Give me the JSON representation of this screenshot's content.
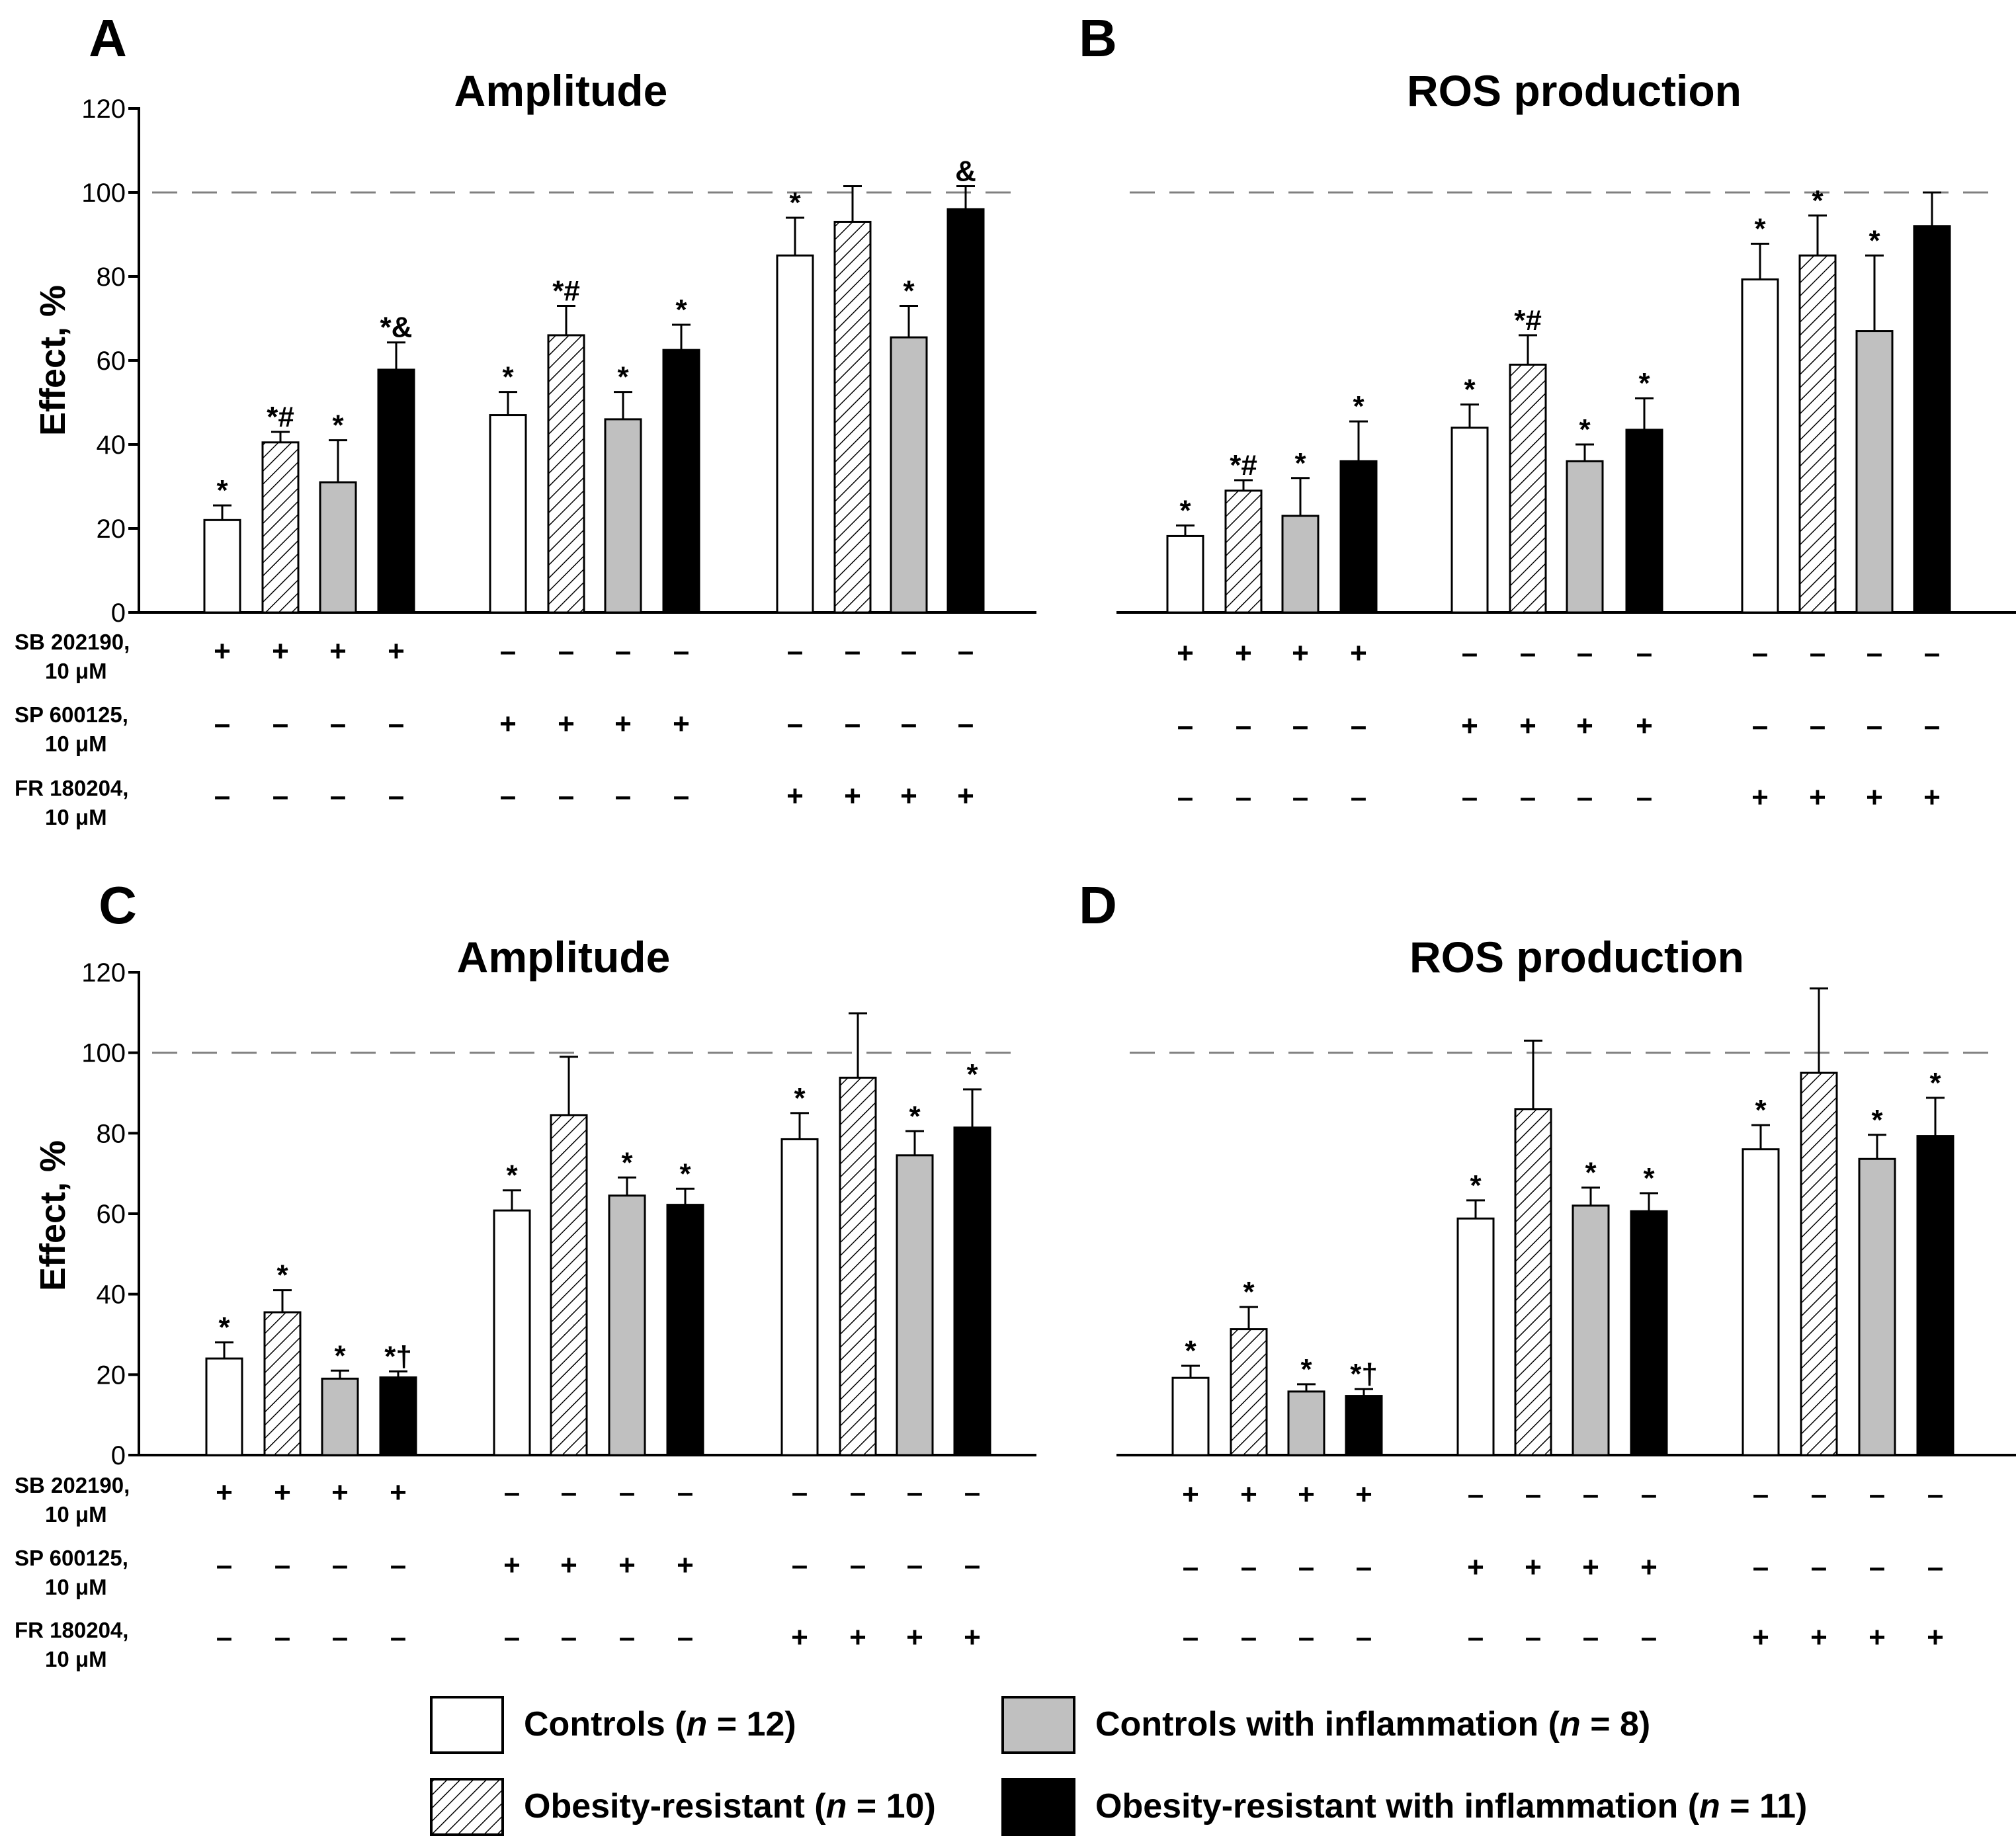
{
  "legend": [
    {
      "key": "controls",
      "label_parts": [
        "Controls (",
        "n",
        " = 12)"
      ],
      "style": "white"
    },
    {
      "key": "controls_infl",
      "label_parts": [
        "Controls with inflammation (",
        "n",
        " = 8)"
      ],
      "style": "gray"
    },
    {
      "key": "obr",
      "label_parts": [
        "Obesity-resistant (",
        "n",
        " = 10)"
      ],
      "style": "hatch"
    },
    {
      "key": "obr_infl",
      "label_parts": [
        "Obesity-resistant with inflammation (",
        "n",
        " = 11)"
      ],
      "style": "black"
    }
  ],
  "colors": {
    "white": "#ffffff",
    "gray": "#c0c0c0",
    "black": "#000000",
    "dash": "#808080",
    "axis": "#000000"
  },
  "chart_data": [
    {
      "panel": "A",
      "title": "Amplitude",
      "type": "bar",
      "ylabel": "Effect, %",
      "ylim": [
        0,
        120
      ],
      "yticks": [
        "0",
        "20",
        "40",
        "60",
        "80",
        "100",
        "120"
      ],
      "show_y_axis": true,
      "reference_line": 100,
      "group_order": [
        "controls",
        "obr",
        "controls_infl",
        "obr_infl"
      ],
      "treatments": [
        "SB 202190",
        "SP 600125",
        "FR 180204"
      ],
      "values": [
        [
          22,
          40.5,
          31,
          57.8
        ],
        [
          47,
          66,
          46,
          62.5
        ],
        [
          85,
          93,
          65.5,
          96
        ]
      ],
      "errors": [
        [
          3.5,
          2.5,
          10,
          6.5
        ],
        [
          5.5,
          7,
          6.5,
          6
        ],
        [
          9,
          8.5,
          7.5,
          5.5
        ]
      ],
      "significance": [
        [
          "*",
          "*#",
          "*",
          "*&"
        ],
        [
          "*",
          "*#",
          "*",
          "*"
        ],
        [
          "*",
          "",
          "*",
          "&"
        ]
      ]
    },
    {
      "panel": "B",
      "title": "ROS production",
      "type": "bar",
      "ylabel": "",
      "ylim": [
        0,
        120
      ],
      "yticks": [],
      "show_y_axis": false,
      "reference_line": 100,
      "group_order": [
        "controls",
        "obr",
        "controls_infl",
        "obr_infl"
      ],
      "treatments": [
        "SB 202190",
        "SP 600125",
        "FR 180204"
      ],
      "values": [
        [
          18.2,
          29,
          23,
          36
        ],
        [
          44,
          59,
          36,
          43.5
        ],
        [
          79.3,
          85,
          67,
          92
        ]
      ],
      "errors": [
        [
          2.5,
          2.5,
          9,
          9.5
        ],
        [
          5.5,
          7,
          4,
          7.5
        ],
        [
          8.5,
          9.5,
          18,
          8
        ]
      ],
      "significance": [
        [
          "*",
          "*#",
          "*",
          "*"
        ],
        [
          "*",
          "*#",
          "*",
          "*"
        ],
        [
          "*",
          "*",
          "*",
          ""
        ]
      ]
    },
    {
      "panel": "C",
      "title": "Amplitude",
      "type": "bar",
      "ylabel": "Effect, %",
      "ylim": [
        0,
        120
      ],
      "yticks": [
        "0",
        "20",
        "40",
        "60",
        "80",
        "100",
        "120"
      ],
      "show_y_axis": true,
      "reference_line": 100,
      "group_order": [
        "controls",
        "obr",
        "controls_infl",
        "obr_infl"
      ],
      "treatments": [
        "SB 202190",
        "SP 600125",
        "FR 180204"
      ],
      "values": [
        [
          24,
          35.5,
          19,
          19.3
        ],
        [
          60.8,
          84.5,
          64.5,
          62.2
        ],
        [
          78.5,
          93.8,
          74.5,
          81.4
        ]
      ],
      "errors": [
        [
          4,
          5.5,
          2,
          1.5
        ],
        [
          5,
          14.5,
          4.5,
          4
        ],
        [
          6.5,
          16,
          6,
          9.5
        ]
      ],
      "significance": [
        [
          "*",
          "*",
          "*",
          "*†"
        ],
        [
          "*",
          "",
          "*",
          "*"
        ],
        [
          "*",
          "",
          "*",
          "*"
        ]
      ]
    },
    {
      "panel": "D",
      "title": "ROS production",
      "type": "bar",
      "ylabel": "",
      "ylim": [
        0,
        120
      ],
      "yticks": [],
      "show_y_axis": false,
      "reference_line": 100,
      "group_order": [
        "controls",
        "obr",
        "controls_infl",
        "obr_infl"
      ],
      "treatments": [
        "SB 202190",
        "SP 600125",
        "FR 180204"
      ],
      "values": [
        [
          19.2,
          31.3,
          15.8,
          14.7
        ],
        [
          58.8,
          86,
          62,
          60.6
        ],
        [
          76,
          95,
          73.6,
          79.3
        ]
      ],
      "errors": [
        [
          3,
          5.5,
          1.8,
          1.7
        ],
        [
          4.5,
          17,
          4.5,
          4.5
        ],
        [
          6,
          21,
          6,
          9.5
        ]
      ],
      "significance": [
        [
          "*",
          "*",
          "*",
          "*†"
        ],
        [
          "*",
          "",
          "*",
          "*"
        ],
        [
          "*",
          "",
          "*",
          "*"
        ]
      ]
    }
  ],
  "drug_labels": [
    {
      "name": "SB 202190,",
      "dose": "10 μM"
    },
    {
      "name": "SP 600125,",
      "dose": "10 μM"
    },
    {
      "name": "FR 180204,",
      "dose": "10 μM"
    }
  ],
  "treatment_signs": {
    "present": "+",
    "absent": "–"
  }
}
